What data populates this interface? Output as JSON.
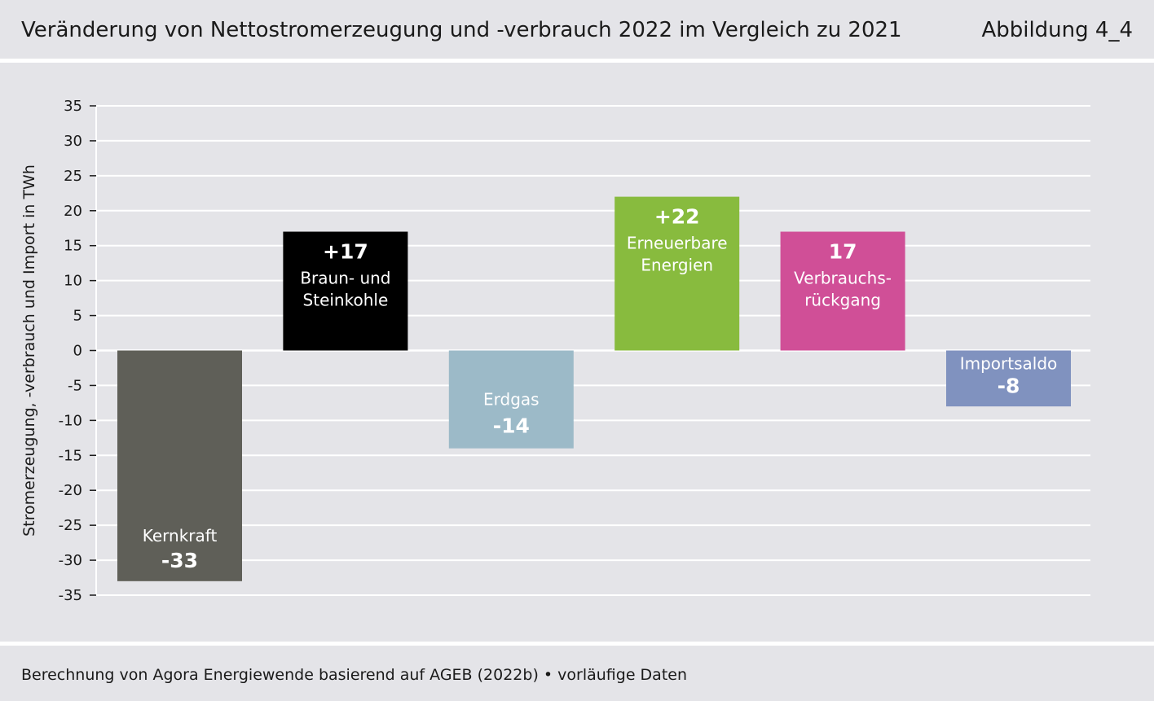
{
  "header": {
    "title": "Veränderung von Nettostromerzeugung und -verbrauch 2022 im Vergleich zu 2021",
    "figure_number": "Abbildung 4_4"
  },
  "footer": {
    "source": "Berechnung von Agora Energiewende basierend auf AGEB (2022b) • vorläufige Daten"
  },
  "chart_data": {
    "type": "bar",
    "title": "Veränderung von Nettostromerzeugung und -verbrauch 2022 im Vergleich zu 2021",
    "xlabel": "",
    "ylabel": "Stromerzeugung, -verbrauch und Import in TWh",
    "ylim": [
      -35,
      35
    ],
    "yticks": [
      35,
      30,
      25,
      20,
      15,
      10,
      5,
      0,
      -5,
      -10,
      -15,
      -20,
      -25,
      -30,
      -35
    ],
    "grid": true,
    "categories": [
      "Kernkraft",
      "Braun- und Steinkohle",
      "Erdgas",
      "Erneuerbare Energien",
      "Verbrauchsrückgang",
      "Importsaldo"
    ],
    "values": [
      -33,
      17,
      -14,
      22,
      17,
      -8
    ],
    "bars": [
      {
        "value": -33,
        "value_label": "-33",
        "label_lines": [
          "Kernkraft"
        ],
        "color": "#5f5f58"
      },
      {
        "value": 17,
        "value_label": "+17",
        "label_lines": [
          "Braun- und",
          "Steinkohle"
        ],
        "color": "#000000"
      },
      {
        "value": -14,
        "value_label": "-14",
        "label_lines": [
          "Erdgas"
        ],
        "color": "#9cbac8"
      },
      {
        "value": 22,
        "value_label": "+22",
        "label_lines": [
          "Erneuerbare",
          "Energien"
        ],
        "color": "#88bb3e"
      },
      {
        "value": 17,
        "value_label": "17",
        "label_lines": [
          "Verbrauchs-",
          "rückgang"
        ],
        "color": "#d04f97"
      },
      {
        "value": -8,
        "value_label": "-8",
        "label_lines": [
          "Importsaldo"
        ],
        "color": "#8092bf"
      }
    ]
  }
}
